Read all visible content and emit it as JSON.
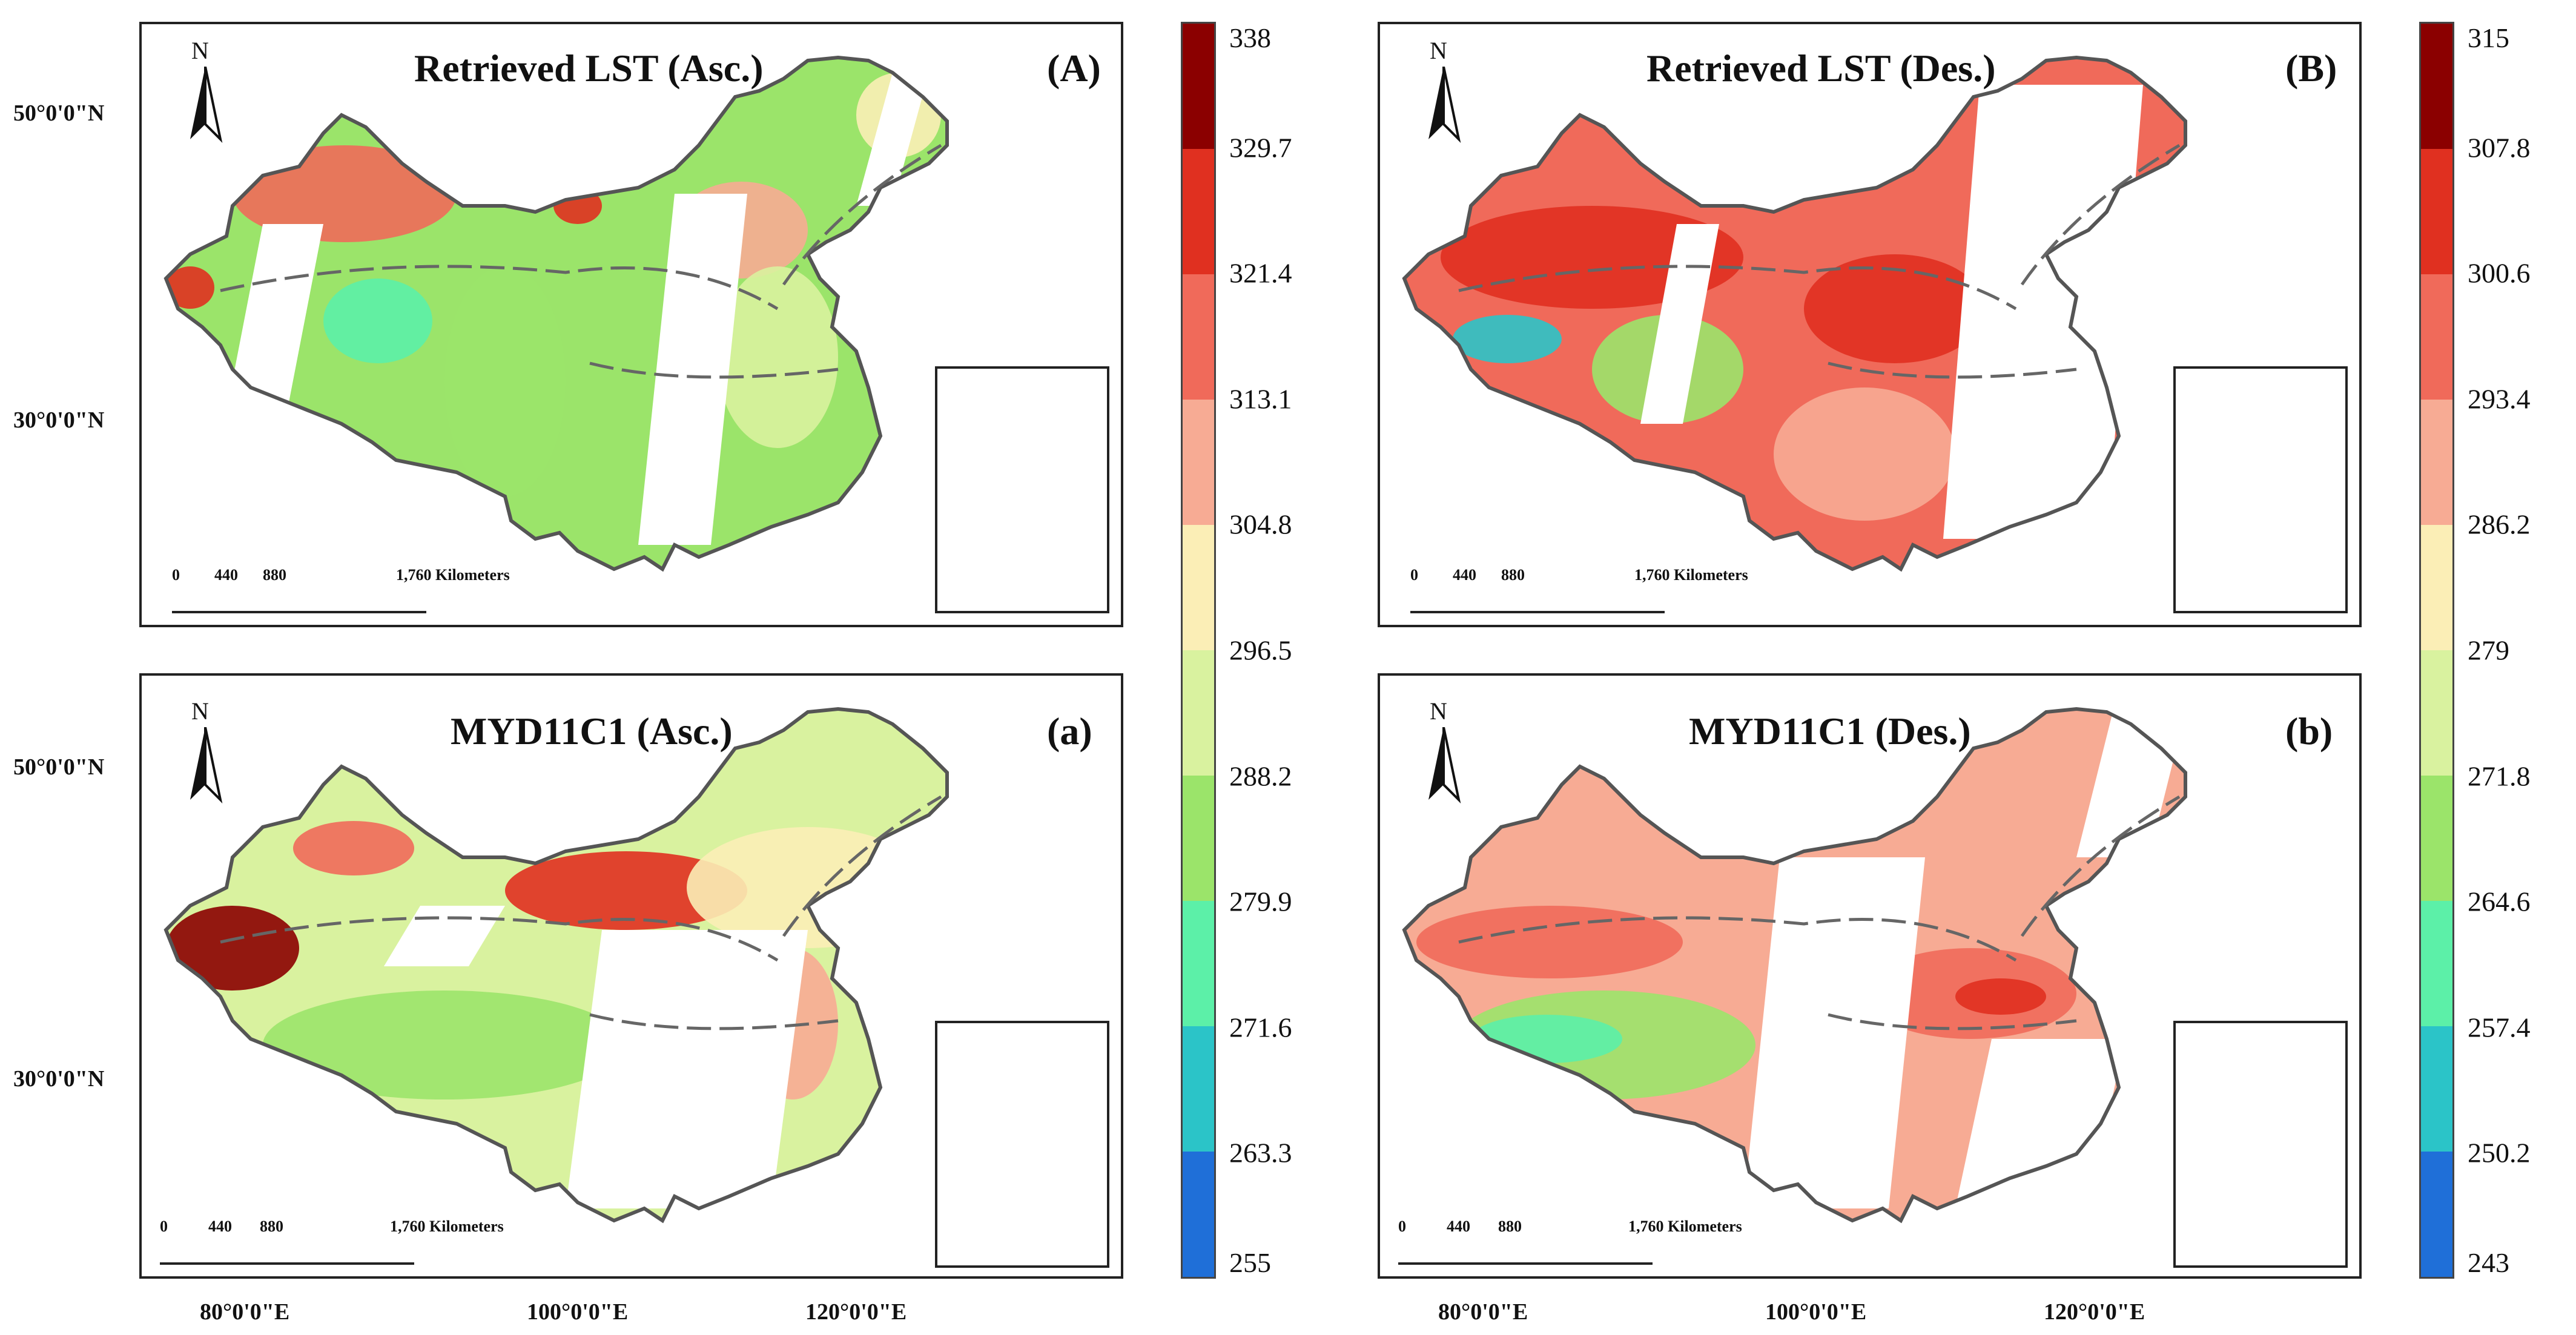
{
  "panels": [
    {
      "id": "A",
      "title": "Retrieved LST (Asc.)",
      "label": "(A)",
      "scale": {
        "t0": "0",
        "t1": "440",
        "t2": "880",
        "t3": "1,760 Kilometers"
      }
    },
    {
      "id": "B",
      "title": "Retrieved LST (Des.)",
      "label": "(B)",
      "scale": {
        "t0": "0",
        "t1": "440",
        "t2": "880",
        "t3": "1,760 Kilometers"
      }
    },
    {
      "id": "a",
      "title": "MYD11C1 (Asc.)",
      "label": "(a)",
      "scale": {
        "t0": "0",
        "t1": "440",
        "t2": "880",
        "t3": "1,760 Kilometers"
      }
    },
    {
      "id": "b",
      "title": "MYD11C1 (Des.)",
      "label": "(b)",
      "scale": {
        "t0": "0",
        "t1": "440",
        "t2": "880",
        "t3": "1,760 Kilometers"
      }
    }
  ],
  "north_label": "N",
  "latitudes": [
    "50°0'0\"N",
    "30°0'0\"N"
  ],
  "longitudes": [
    "80°0'0\"E",
    "100°0'0\"E",
    "120°0'0\"E"
  ],
  "colorbar_left": {
    "labels": [
      "338",
      "329.7",
      "321.4",
      "313.1",
      "304.8",
      "296.5",
      "288.2",
      "279.9",
      "271.6",
      "263.3",
      "255"
    ]
  },
  "colorbar_right": {
    "labels": [
      "315",
      "307.8",
      "300.6",
      "293.4",
      "286.2",
      "279",
      "271.8",
      "264.6",
      "257.4",
      "250.2",
      "243"
    ]
  },
  "colors": [
    "#8b0000",
    "#e03020",
    "#f06a5a",
    "#f7ab94",
    "#fbeeb6",
    "#d9f29f",
    "#9be46a",
    "#5cf0a8",
    "#2bc4c8",
    "#1f6fd8"
  ]
}
